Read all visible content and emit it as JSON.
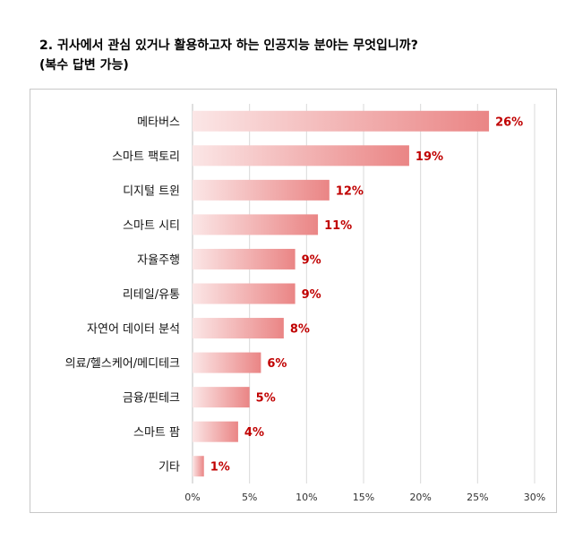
{
  "title": {
    "line1": "2. 귀사에서 관심 있거나 활용하고자 하는 인공지능 분야는 무엇입니까?",
    "line2": "(복수 답변 가능)"
  },
  "colors": {
    "bar_start": "#fbe6e6",
    "bar_end": "#ea8585",
    "value_label": "#c00000",
    "grid": "#d9d9d9"
  },
  "chart_data": {
    "type": "bar",
    "orientation": "horizontal",
    "title": "2. 귀사에서 관심 있거나 활용하고자 하는 인공지능 분야는 무엇입니까? (복수 답변 가능)",
    "categories": [
      "메타버스",
      "스마트 팩토리",
      "디지털 트윈",
      "스마트 시티",
      "자율주행",
      "리테일/유통",
      "자연어 데이터 분석",
      "의료/헬스케어/메디테크",
      "금융/핀테크",
      "스마트 팜",
      "기타"
    ],
    "values": [
      26,
      19,
      12,
      11,
      9,
      9,
      8,
      6,
      5,
      4,
      1
    ],
    "value_labels": [
      "26%",
      "19%",
      "12%",
      "11%",
      "9%",
      "9%",
      "8%",
      "6%",
      "5%",
      "4%",
      "1%"
    ],
    "xlim": [
      0,
      30
    ],
    "xticks": [
      0,
      5,
      10,
      15,
      20,
      25,
      30
    ],
    "xtick_labels": [
      "0%",
      "5%",
      "10%",
      "15%",
      "20%",
      "25%",
      "30%"
    ],
    "grid": true,
    "legend": "none"
  }
}
